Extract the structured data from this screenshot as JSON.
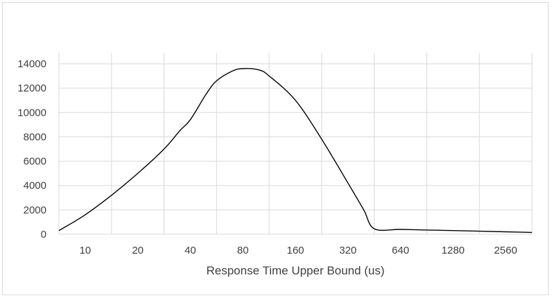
{
  "chart_data": {
    "type": "line",
    "title": "",
    "xlabel": "Response Time Upper Bound (us)",
    "ylabel": "",
    "categories": [
      "10",
      "20",
      "40",
      "80",
      "160",
      "320",
      "640",
      "1280",
      "2560"
    ],
    "ylim": [
      0,
      14000
    ],
    "yticks": [
      0,
      2000,
      4000,
      6000,
      8000,
      10000,
      12000,
      14000
    ],
    "grid": {
      "vertical": true,
      "horizontal": true
    },
    "legend": "none",
    "line_color": "#000000",
    "grid_color": "#d9d9d9",
    "series": [
      {
        "x": [
          0.0,
          0.5,
          1.0,
          1.5,
          2.0,
          2.3,
          2.5,
          2.8,
          3.0,
          3.3,
          3.5,
          3.8,
          4.0,
          4.5,
          5.0,
          5.5,
          5.8,
          6.0,
          6.5,
          7.0,
          7.5,
          8.0,
          8.5,
          9.0
        ],
        "values": [
          300,
          1600,
          3200,
          5000,
          7000,
          8500,
          9400,
          11500,
          12600,
          13400,
          13600,
          13500,
          13000,
          11000,
          7800,
          4200,
          2000,
          450,
          400,
          350,
          300,
          250,
          200,
          150
        ]
      }
    ]
  }
}
